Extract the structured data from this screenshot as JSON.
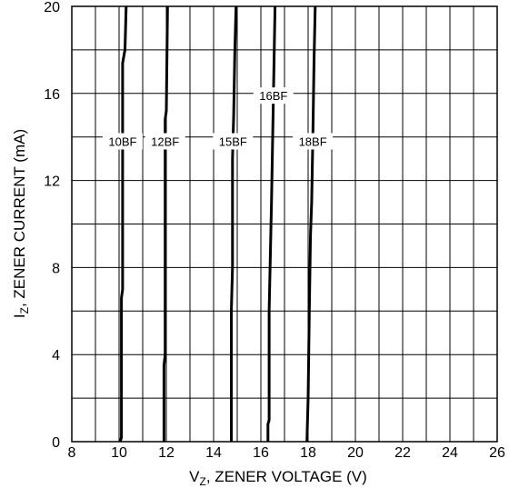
{
  "chart_data": {
    "type": "line",
    "title": "",
    "xlabel": "V_Z, ZENER VOLTAGE (V)",
    "xlabel_parts": {
      "main": "V",
      "sub": "Z",
      "rest": ", ZENER VOLTAGE (V)"
    },
    "ylabel": "I_Z, ZENER CURRENT (mA)",
    "ylabel_parts": {
      "main": "I",
      "sub": "Z",
      "rest": ", ZENER CURRENT (mA)"
    },
    "xlim": [
      8,
      26
    ],
    "ylim": [
      0,
      20
    ],
    "xticks": [
      "8",
      "10",
      "12",
      "14",
      "16",
      "18",
      "20",
      "22",
      "24",
      "26"
    ],
    "yticks": [
      "0",
      "4",
      "8",
      "12",
      "16",
      "20"
    ],
    "x_grid_step": 1,
    "y_grid_step": 2,
    "grid": true,
    "series": [
      {
        "name": "10BF",
        "label_y": 13.8,
        "points": [
          [
            10.05,
            0
          ],
          [
            10.1,
            0.2
          ],
          [
            10.1,
            6.6
          ],
          [
            10.15,
            7
          ],
          [
            10.15,
            17.4
          ],
          [
            10.25,
            18
          ],
          [
            10.3,
            20
          ]
        ]
      },
      {
        "name": "12BF",
        "label_y": 13.8,
        "points": [
          [
            11.9,
            0
          ],
          [
            11.9,
            3.5
          ],
          [
            11.95,
            4
          ],
          [
            11.95,
            14.8
          ],
          [
            12.0,
            15.2
          ],
          [
            12.05,
            20
          ]
        ]
      },
      {
        "name": "15BF",
        "label_y": 13.8,
        "points": [
          [
            14.75,
            0
          ],
          [
            14.75,
            6
          ],
          [
            14.8,
            8
          ],
          [
            14.8,
            13
          ],
          [
            14.85,
            15
          ],
          [
            14.9,
            18
          ],
          [
            14.95,
            20
          ]
        ]
      },
      {
        "name": "16BF",
        "label_y": 15.9,
        "points": [
          [
            16.3,
            0
          ],
          [
            16.3,
            0.8
          ],
          [
            16.35,
            1
          ],
          [
            16.35,
            6
          ],
          [
            16.45,
            11
          ],
          [
            16.5,
            14
          ],
          [
            16.55,
            17
          ],
          [
            16.6,
            20
          ]
        ]
      },
      {
        "name": "18BF",
        "label_y": 13.8,
        "points": [
          [
            17.95,
            0
          ],
          [
            18.0,
            2
          ],
          [
            18.05,
            6
          ],
          [
            18.1,
            9.5
          ],
          [
            18.15,
            11
          ],
          [
            18.2,
            14
          ],
          [
            18.25,
            17.5
          ],
          [
            18.3,
            20
          ]
        ]
      }
    ]
  }
}
